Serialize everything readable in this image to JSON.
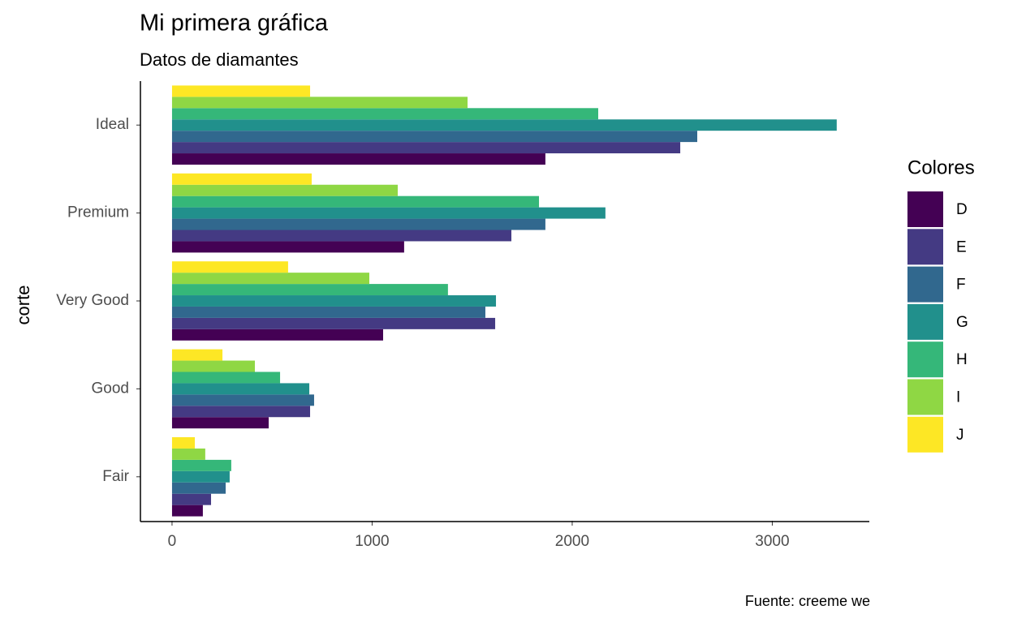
{
  "chart_data": {
    "type": "bar",
    "orientation": "horizontal",
    "title": "Mi primera gráfica",
    "subtitle": "Datos de diamantes",
    "caption": "Fuente: creeme we",
    "ylabel": "corte",
    "categories": [
      "Fair",
      "Good",
      "Very Good",
      "Premium",
      "Ideal"
    ],
    "legend_title": "Colores",
    "legend": "right",
    "series": [
      {
        "name": "D",
        "color": "#440154",
        "values": [
          154,
          483,
          1055,
          1160,
          1866
        ]
      },
      {
        "name": "E",
        "color": "#443A83",
        "values": [
          195,
          690,
          1615,
          1696,
          2540
        ]
      },
      {
        "name": "F",
        "color": "#31688E",
        "values": [
          268,
          710,
          1566,
          1866,
          2625
        ]
      },
      {
        "name": "G",
        "color": "#21908C",
        "values": [
          288,
          686,
          1619,
          2166,
          3322
        ]
      },
      {
        "name": "H",
        "color": "#35B779",
        "values": [
          296,
          540,
          1379,
          1834,
          2130
        ]
      },
      {
        "name": "I",
        "color": "#8FD744",
        "values": [
          166,
          414,
          986,
          1128,
          1477
        ]
      },
      {
        "name": "J",
        "color": "#FDE725",
        "values": [
          114,
          252,
          580,
          698,
          690
        ]
      }
    ],
    "xlim": [
      -158,
      3485
    ],
    "xticks": [
      0,
      1000,
      2000,
      3000
    ]
  }
}
